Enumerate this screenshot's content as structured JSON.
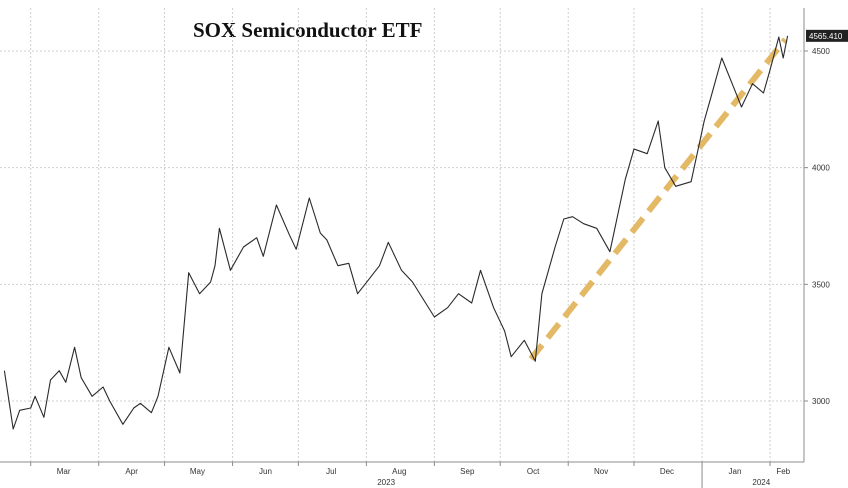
{
  "chart_data": {
    "type": "line",
    "title": "SOX Semiconductor ETF",
    "xlabel": "",
    "ylabel": "",
    "ylim": [
      2750,
      4600
    ],
    "yticks": [
      3000,
      3500,
      4000,
      4500
    ],
    "grid": true,
    "last_value_label": "4565.410",
    "month_ticks": [
      "Mar",
      "Apr",
      "May",
      "Jun",
      "Jul",
      "Aug",
      "Sep",
      "Oct",
      "Nov",
      "Dec",
      "Jan",
      "Feb"
    ],
    "year_labels": [
      "2023",
      "2024"
    ],
    "x": [
      "2023-02-17",
      "2023-02-21",
      "2023-02-24",
      "2023-03-01",
      "2023-03-03",
      "2023-03-07",
      "2023-03-10",
      "2023-03-14",
      "2023-03-17",
      "2023-03-21",
      "2023-03-24",
      "2023-03-29",
      "2023-04-03",
      "2023-04-06",
      "2023-04-12",
      "2023-04-17",
      "2023-04-20",
      "2023-04-25",
      "2023-04-28",
      "2023-05-03",
      "2023-05-08",
      "2023-05-12",
      "2023-05-17",
      "2023-05-22",
      "2023-05-24",
      "2023-05-26",
      "2023-05-31",
      "2023-06-06",
      "2023-06-12",
      "2023-06-15",
      "2023-06-21",
      "2023-06-27",
      "2023-06-30",
      "2023-07-06",
      "2023-07-11",
      "2023-07-14",
      "2023-07-19",
      "2023-07-24",
      "2023-07-28",
      "2023-08-02",
      "2023-08-07",
      "2023-08-11",
      "2023-08-17",
      "2023-08-22",
      "2023-08-28",
      "2023-09-01",
      "2023-09-07",
      "2023-09-12",
      "2023-09-18",
      "2023-09-22",
      "2023-09-28",
      "2023-10-03",
      "2023-10-06",
      "2023-10-12",
      "2023-10-17",
      "2023-10-20",
      "2023-10-26",
      "2023-10-30",
      "2023-11-03",
      "2023-11-08",
      "2023-11-14",
      "2023-11-20",
      "2023-11-27",
      "2023-12-01",
      "2023-12-07",
      "2023-12-12",
      "2023-12-15",
      "2023-12-20",
      "2023-12-27",
      "2024-01-02",
      "2024-01-05",
      "2024-01-10",
      "2024-01-16",
      "2024-01-19",
      "2024-01-24",
      "2024-01-29",
      "2024-02-01",
      "2024-02-05",
      "2024-02-07",
      "2024-02-09"
    ],
    "series": [
      {
        "values": [
          3130,
          2880,
          2960,
          2970,
          3020,
          2930,
          3090,
          3130,
          3080,
          3230,
          3100,
          3020,
          3060,
          3000,
          2900,
          2970,
          2990,
          2950,
          3020,
          3230,
          3120,
          3550,
          3460,
          3510,
          3580,
          3740,
          3560,
          3660,
          3700,
          3620,
          3840,
          3710,
          3650,
          3870,
          3720,
          3690,
          3580,
          3590,
          3460,
          3520,
          3580,
          3680,
          3560,
          3510,
          3420,
          3360,
          3400,
          3460,
          3420,
          3560,
          3400,
          3300,
          3190,
          3260,
          3170,
          3460,
          3660,
          3780,
          3790,
          3760,
          3740,
          3640,
          3950,
          4080,
          4060,
          4200,
          4000,
          3920,
          3940,
          4200,
          4300,
          4470,
          4330,
          4260,
          4360,
          4320,
          4420,
          4560,
          4470,
          4565
        ]
      }
    ],
    "trendline": {
      "x": [
        "2023-10-15",
        "2024-02-08"
      ],
      "y": [
        3180,
        4550
      ],
      "color": "#e0b256"
    },
    "colors": {
      "line": "#2a2a2a",
      "grid": "#cfcfcf",
      "axis": "#8c8c8c",
      "last_label_bg": "#222222"
    }
  }
}
